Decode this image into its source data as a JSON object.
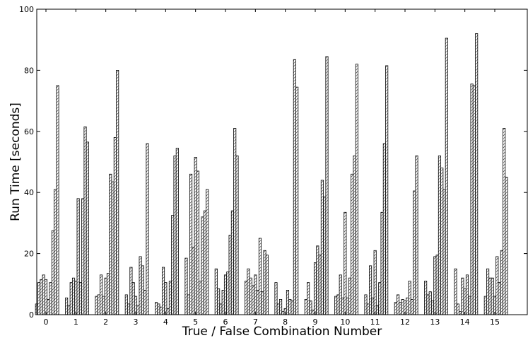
{
  "chart_data": {
    "type": "bar",
    "xlabel": "True / False Combination Number",
    "ylabel": "Run Time [seconds]",
    "ylim": [
      0,
      100
    ],
    "yticks": [
      0,
      20,
      40,
      60,
      80,
      100
    ],
    "grid": false,
    "legend": "none",
    "bar_fill": "#ffffff",
    "hatch_color": "#000000",
    "categories": [
      "0",
      "1",
      "2",
      "3",
      "4",
      "5",
      "6",
      "7",
      "8",
      "9",
      "10",
      "11",
      "12",
      "13",
      "14",
      "15"
    ],
    "groups": [
      [
        3.5,
        10.5,
        11.5,
        13,
        11.5,
        5,
        10.5,
        27.5,
        41,
        75
      ],
      [
        5.5,
        3,
        10.5,
        12,
        11,
        38,
        10.5,
        38,
        61.5,
        56.5
      ],
      [
        6,
        6.5,
        13,
        6,
        12,
        13.5,
        46,
        43.5,
        58,
        80
      ],
      [
        6.5,
        3.5,
        15.5,
        10.5,
        6,
        3,
        19,
        16,
        8,
        56
      ],
      [
        4,
        3.5,
        2.5,
        15.5,
        10.5,
        2,
        11,
        32.5,
        52,
        54.5
      ],
      [
        18.5,
        6.5,
        46,
        22,
        51.5,
        47,
        11,
        32,
        34,
        41
      ],
      [
        15,
        8.5,
        3.5,
        8,
        13,
        14,
        26,
        34,
        61,
        52
      ],
      [
        11,
        15,
        12,
        9.5,
        13,
        8,
        25,
        7.5,
        21,
        19.5
      ],
      [
        10.5,
        3.5,
        5,
        1,
        2,
        8,
        5,
        4.5,
        83.5,
        74.5
      ],
      [
        5,
        10.5,
        4.5,
        1.5,
        17,
        22.5,
        19.5,
        44,
        38.5,
        84.5
      ],
      [
        6,
        6.5,
        13,
        5.5,
        33.5,
        5.5,
        12,
        46,
        52,
        82
      ],
      [
        6.5,
        3.5,
        16,
        5.5,
        21,
        3,
        10.5,
        33.5,
        56,
        81.5
      ],
      [
        4,
        6.5,
        4,
        5,
        4.5,
        5.5,
        11,
        5,
        40.5,
        52
      ],
      [
        11,
        6.5,
        7.5,
        4.5,
        19,
        19.5,
        52,
        48,
        41,
        90.5
      ],
      [
        15,
        3.5,
        1,
        12,
        8.5,
        13,
        6,
        75.5,
        75,
        92
      ],
      [
        6,
        15,
        12,
        12,
        6,
        19,
        10.5,
        21,
        61,
        45
      ]
    ]
  }
}
